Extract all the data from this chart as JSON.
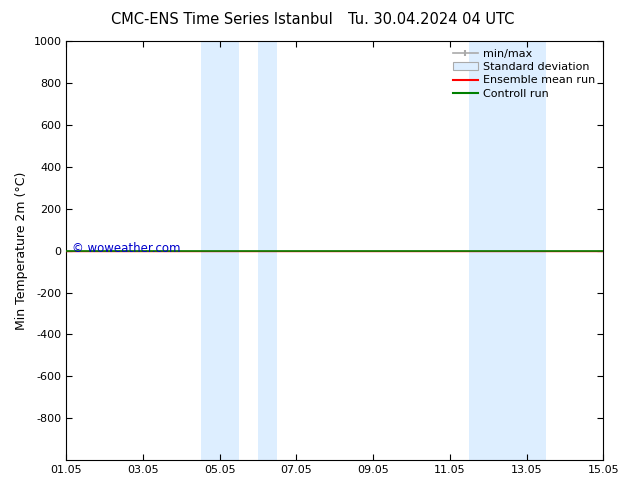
{
  "title_left": "CMC-ENS Time Series Istanbul",
  "title_right": "Tu. 30.04.2024 04 UTC",
  "ylabel": "Min Temperature 2m (°C)",
  "ylim_top": -1000,
  "ylim_bottom": 1000,
  "yticks": [
    -800,
    -600,
    -400,
    -200,
    0,
    200,
    400,
    600,
    800,
    1000
  ],
  "xtick_labels": [
    "01.05",
    "03.05",
    "05.05",
    "07.05",
    "09.05",
    "11.05",
    "13.05",
    "15.05"
  ],
  "xtick_positions": [
    0,
    2,
    4,
    6,
    8,
    10,
    12,
    14
  ],
  "xlim": [
    0,
    14
  ],
  "shaded_bands": [
    {
      "start": 3.5,
      "end": 4.5
    },
    {
      "start": 5.0,
      "end": 5.5
    },
    {
      "start": 10.5,
      "end": 12.5
    }
  ],
  "control_run_value": 0,
  "ensemble_mean_value": 0,
  "watermark": "© woweather.com",
  "watermark_color": "#0000cc",
  "control_run_color": "#008000",
  "ensemble_mean_color": "#ff0000",
  "shade_color": "#ddeeff",
  "background_color": "#ffffff",
  "legend_items": [
    "min/max",
    "Standard deviation",
    "Ensemble mean run",
    "Controll run"
  ],
  "legend_line_colors": [
    "#aaaaaa",
    "#cccccc",
    "#ff0000",
    "#008000"
  ],
  "title_fontsize": 10.5,
  "tick_fontsize": 8,
  "ylabel_fontsize": 9,
  "legend_fontsize": 8
}
